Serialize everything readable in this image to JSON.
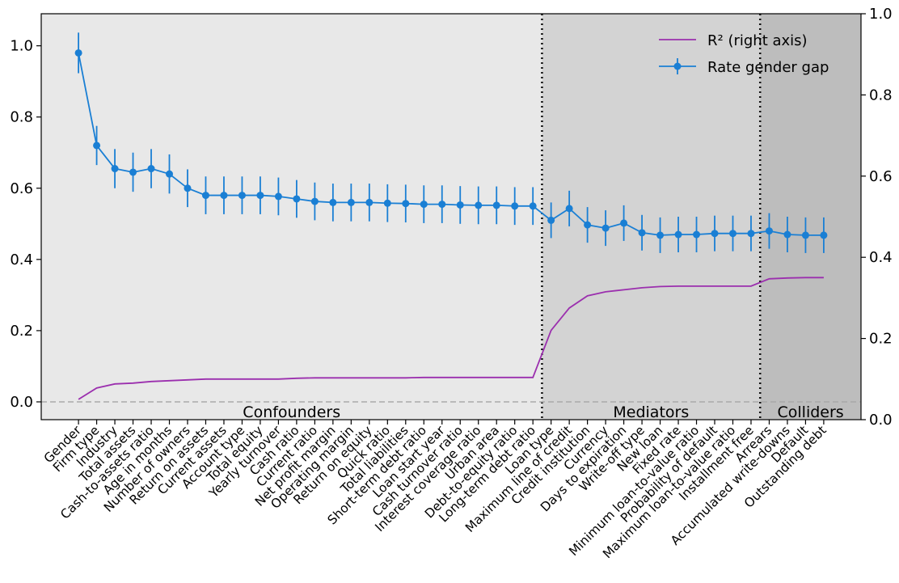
{
  "chart_data": {
    "type": "errorbar-line",
    "categories": [
      "Gender",
      "Firm type",
      "Industry",
      "Total assets",
      "Cash-to-assets ratio",
      "Age in months",
      "Number of owners",
      "Return on assets",
      "Current assets",
      "Account type",
      "Total equity",
      "Yearly turnover",
      "Cash ratio",
      "Current ratio",
      "Net profit margin",
      "Operating margin",
      "Return on equity",
      "Quick ratio",
      "Total liabilities",
      "Short-term debt ratio",
      "Loan start year",
      "Cash turnover ratio",
      "Interest coverage ratio",
      "Urban area",
      "Debt-to-equity ratio",
      "Long-term debt ratio",
      "Loan type",
      "Maximum line of credit",
      "Credit institution",
      "Currency",
      "Days to expiration",
      "Write-off type",
      "New loan",
      "Fixed rate",
      "Minimum loan-to-value ratio",
      "Probability of default",
      "Maximum loan-to-value ratio",
      "Installment free",
      "Arrears",
      "Accumulated write-downs",
      "Default",
      "Outstanding debt"
    ],
    "series": [
      {
        "name": "R² (right axis)",
        "color": "#9b2fae",
        "axis": "y2",
        "values": [
          0.05,
          0.078,
          0.088,
          0.09,
          0.094,
          0.096,
          0.098,
          0.1,
          0.1,
          0.1,
          0.1,
          0.1,
          0.102,
          0.103,
          0.103,
          0.103,
          0.103,
          0.103,
          0.103,
          0.104,
          0.104,
          0.104,
          0.104,
          0.104,
          0.104,
          0.104,
          0.22,
          0.275,
          0.305,
          0.315,
          0.32,
          0.325,
          0.328,
          0.329,
          0.329,
          0.329,
          0.329,
          0.329,
          0.347,
          0.349,
          0.35,
          0.35
        ]
      },
      {
        "name": "Rate gender gap",
        "color": "#1a7fd4",
        "marker": "circle",
        "values": [
          0.98,
          0.72,
          0.655,
          0.645,
          0.655,
          0.64,
          0.6,
          0.58,
          0.58,
          0.58,
          0.58,
          0.577,
          0.57,
          0.563,
          0.56,
          0.56,
          0.56,
          0.558,
          0.557,
          0.555,
          0.555,
          0.553,
          0.552,
          0.552,
          0.55,
          0.55,
          0.51,
          0.543,
          0.497,
          0.488,
          0.502,
          0.475,
          0.468,
          0.47,
          0.47,
          0.473,
          0.473,
          0.473,
          0.48,
          0.47,
          0.468,
          0.468
        ],
        "errors": [
          0.057,
          0.055,
          0.055,
          0.055,
          0.055,
          0.055,
          0.053,
          0.053,
          0.053,
          0.053,
          0.053,
          0.053,
          0.053,
          0.053,
          0.053,
          0.053,
          0.053,
          0.053,
          0.053,
          0.053,
          0.053,
          0.053,
          0.053,
          0.053,
          0.053,
          0.053,
          0.05,
          0.05,
          0.05,
          0.05,
          0.05,
          0.05,
          0.05,
          0.05,
          0.05,
          0.05,
          0.05,
          0.05,
          0.05,
          0.05,
          0.05,
          0.05
        ]
      }
    ],
    "regions": [
      {
        "label": "Confounders",
        "color": "#e8e8e8"
      },
      {
        "label": "Mediators",
        "color": "#d3d3d3"
      },
      {
        "label": "Colliders",
        "color": "#bdbdbd"
      }
    ],
    "region_boundaries": [
      25.5,
      37.5
    ],
    "xlim": [
      -2.05,
      43.05
    ],
    "ylim": [
      -0.05,
      1.09
    ],
    "yticks": [
      {
        "value": 0,
        "label": "0.0"
      },
      0.2,
      0.4,
      0.6,
      0.8,
      {
        "value": 1,
        "label": "1.0"
      }
    ],
    "y2lim": [
      0,
      1
    ],
    "y2ticks": [
      {
        "value": 0,
        "label": "0.0"
      },
      0.2,
      0.4,
      0.6,
      0.8,
      {
        "value": 1,
        "label": "1.0"
      }
    ],
    "zero_line": true,
    "legend": "upper right"
  }
}
